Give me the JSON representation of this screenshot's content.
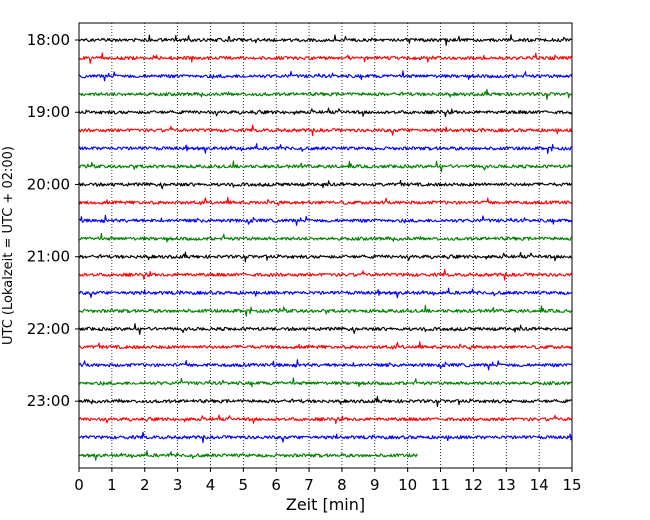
{
  "chart_data": {
    "type": "line",
    "xlabel": "Zeit  [min]",
    "ylabel": "UTC (Lokalzeit = UTC + 02:00)",
    "xlim": [
      0,
      15
    ],
    "x_ticks": [
      0,
      1,
      2,
      3,
      4,
      5,
      6,
      7,
      8,
      9,
      10,
      11,
      12,
      13,
      14,
      15
    ],
    "vertical_gridlines": true,
    "y_ticks": [
      "18:00",
      "19:00",
      "20:00",
      "21:00",
      "22:00",
      "23:00"
    ],
    "trace_interval_minutes": 15,
    "trace_start": "18:00",
    "colors_cycle": [
      "#000000",
      "#ff0000",
      "#0000ff",
      "#008000"
    ],
    "traces": [
      {
        "start": "18:00",
        "color": "#000000",
        "end_min": 15
      },
      {
        "start": "18:15",
        "color": "#ff0000",
        "end_min": 15
      },
      {
        "start": "18:30",
        "color": "#0000ff",
        "end_min": 15
      },
      {
        "start": "18:45",
        "color": "#008000",
        "end_min": 15
      },
      {
        "start": "19:00",
        "color": "#000000",
        "end_min": 15
      },
      {
        "start": "19:15",
        "color": "#ff0000",
        "end_min": 15
      },
      {
        "start": "19:30",
        "color": "#0000ff",
        "end_min": 15
      },
      {
        "start": "19:45",
        "color": "#008000",
        "end_min": 15
      },
      {
        "start": "20:00",
        "color": "#000000",
        "end_min": 15
      },
      {
        "start": "20:15",
        "color": "#ff0000",
        "end_min": 15
      },
      {
        "start": "20:30",
        "color": "#0000ff",
        "end_min": 15
      },
      {
        "start": "20:45",
        "color": "#008000",
        "end_min": 15
      },
      {
        "start": "21:00",
        "color": "#000000",
        "end_min": 15
      },
      {
        "start": "21:15",
        "color": "#ff0000",
        "end_min": 15
      },
      {
        "start": "21:30",
        "color": "#0000ff",
        "end_min": 15
      },
      {
        "start": "21:45",
        "color": "#008000",
        "end_min": 15
      },
      {
        "start": "22:00",
        "color": "#000000",
        "end_min": 15
      },
      {
        "start": "22:15",
        "color": "#ff0000",
        "end_min": 15
      },
      {
        "start": "22:30",
        "color": "#0000ff",
        "end_min": 15
      },
      {
        "start": "22:45",
        "color": "#008000",
        "end_min": 15
      },
      {
        "start": "23:00",
        "color": "#000000",
        "end_min": 15
      },
      {
        "start": "23:15",
        "color": "#ff0000",
        "end_min": 15
      },
      {
        "start": "23:30",
        "color": "#0000ff",
        "end_min": 15
      },
      {
        "start": "23:45",
        "color": "#008000",
        "end_min": 10.3
      }
    ]
  }
}
